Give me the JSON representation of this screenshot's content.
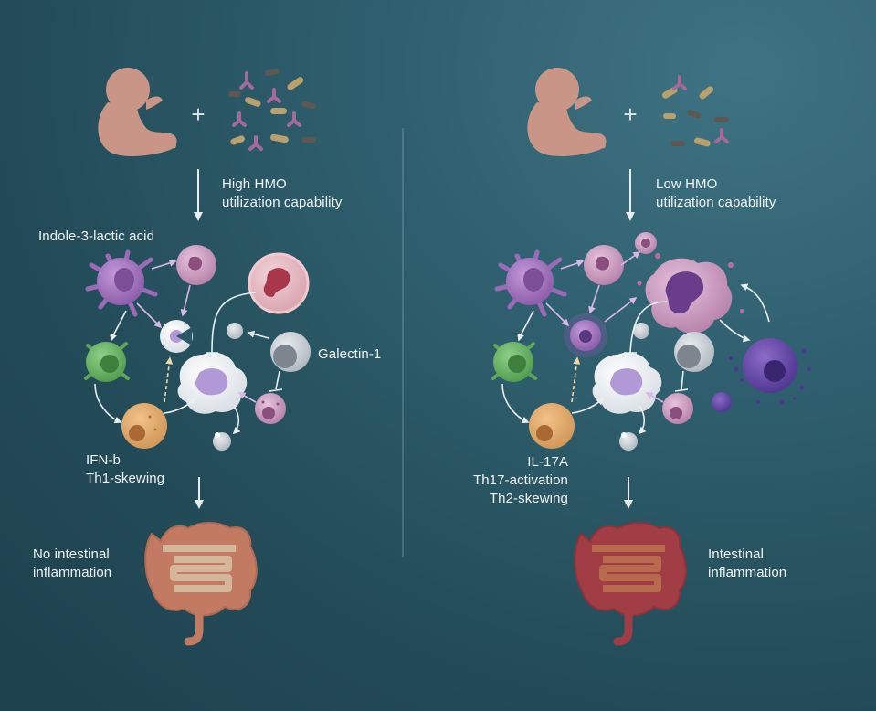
{
  "left_panel": {
    "arrow_label_line1": "High HMO",
    "arrow_label_line2": "utilization capability",
    "metabolite": "Indole-3-lactic acid",
    "protein": "Galectin-1",
    "cytokine": "IFN-b",
    "skewing": "Th1-skewing",
    "outcome_line1": "No intestinal",
    "outcome_line2": "inflammation"
  },
  "right_panel": {
    "arrow_label_line1": "Low HMO",
    "arrow_label_line2": "utilization capability",
    "cytokine": "IL-17A",
    "activation": "Th17-activation",
    "skewing": "Th2-skewing",
    "outcome_line1": "Intestinal",
    "outcome_line2": "inflammation"
  },
  "colors": {
    "background": "#2a5866",
    "infant": "#c99586",
    "healthy_gut": "#c27a62",
    "inflamed_gut": "#a13d45",
    "dendritic_cell": "#9b6bb8",
    "green_cell": "#5fa55a",
    "macrophage": "#d9a56a",
    "arrow": "#e9eef0"
  },
  "icons": [
    "infant-icon",
    "bacteria-icon",
    "immune-cell-icon",
    "intestine-icon"
  ]
}
